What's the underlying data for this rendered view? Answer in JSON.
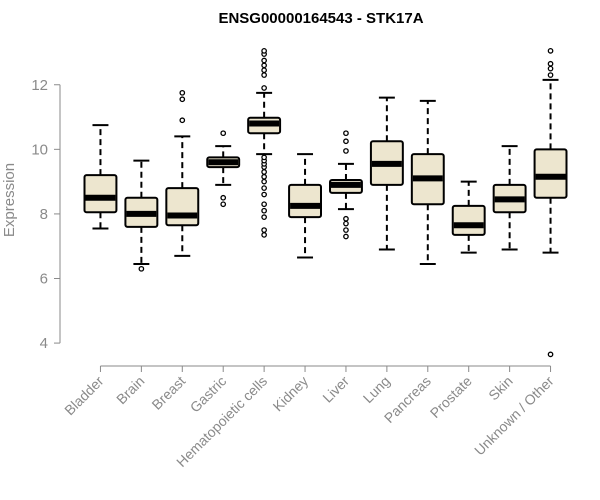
{
  "chart_data": {
    "type": "boxplot",
    "title": "ENSG00000164543 - STK17A",
    "ylabel": "Expression",
    "xlabel": "",
    "ylim": [
      3.6,
      13.2
    ],
    "yticks": [
      4,
      6,
      8,
      10,
      12
    ],
    "grid": false,
    "box_color": "#ede6cf",
    "categories": [
      "Bladder",
      "Brain",
      "Breast",
      "Gastric",
      "Hematopoietic cells",
      "Kidney",
      "Liver",
      "Lung",
      "Pancreas",
      "Prostate",
      "Skin",
      "Unknown / Other"
    ],
    "boxes": [
      {
        "whisker_low": 7.55,
        "q1": 8.05,
        "median": 8.5,
        "q3": 9.2,
        "whisker_high": 10.75,
        "outliers": []
      },
      {
        "whisker_low": 6.45,
        "q1": 7.6,
        "median": 8.0,
        "q3": 8.5,
        "whisker_high": 9.65,
        "outliers": [
          6.3
        ]
      },
      {
        "whisker_low": 6.7,
        "q1": 7.65,
        "median": 7.95,
        "q3": 8.8,
        "whisker_high": 10.4,
        "outliers": [
          10.9,
          11.55,
          11.75
        ]
      },
      {
        "whisker_low": 8.9,
        "q1": 9.45,
        "median": 9.6,
        "q3": 9.75,
        "whisker_high": 10.1,
        "outliers": [
          8.3,
          8.5,
          10.5
        ]
      },
      {
        "whisker_low": 9.85,
        "q1": 10.5,
        "median": 10.8,
        "q3": 10.98,
        "whisker_high": 11.75,
        "outliers": [
          7.35,
          7.5,
          7.9,
          8.1,
          8.3,
          8.6,
          8.8,
          9.0,
          9.15,
          9.3,
          9.45,
          9.55,
          9.65,
          9.75,
          11.9,
          12.3,
          12.45,
          12.6,
          12.75,
          12.95,
          13.05
        ]
      },
      {
        "whisker_low": 6.65,
        "q1": 7.9,
        "median": 8.25,
        "q3": 8.9,
        "whisker_high": 9.85,
        "outliers": []
      },
      {
        "whisker_low": 8.15,
        "q1": 8.65,
        "median": 8.9,
        "q3": 9.05,
        "whisker_high": 9.55,
        "outliers": [
          7.3,
          7.5,
          7.7,
          7.85,
          9.95,
          10.25,
          10.5
        ]
      },
      {
        "whisker_low": 6.9,
        "q1": 8.9,
        "median": 9.55,
        "q3": 10.25,
        "whisker_high": 11.6,
        "outliers": []
      },
      {
        "whisker_low": 6.45,
        "q1": 8.3,
        "median": 9.1,
        "q3": 9.85,
        "whisker_high": 11.5,
        "outliers": []
      },
      {
        "whisker_low": 6.8,
        "q1": 7.35,
        "median": 7.65,
        "q3": 8.25,
        "whisker_high": 9.0,
        "outliers": []
      },
      {
        "whisker_low": 6.9,
        "q1": 8.05,
        "median": 8.45,
        "q3": 8.9,
        "whisker_high": 10.1,
        "outliers": []
      },
      {
        "whisker_low": 6.8,
        "q1": 8.5,
        "median": 9.15,
        "q3": 10.0,
        "whisker_high": 12.15,
        "outliers": [
          3.65,
          12.3,
          12.5,
          12.65,
          13.05
        ]
      }
    ]
  }
}
